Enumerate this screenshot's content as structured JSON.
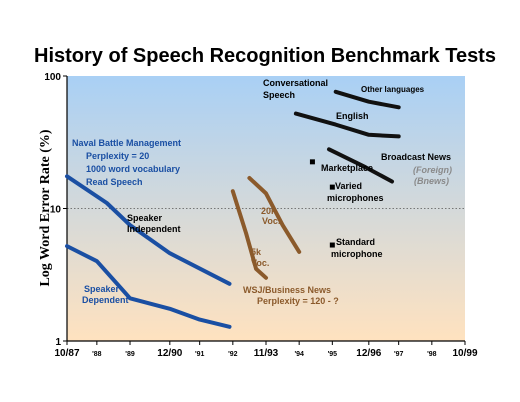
{
  "chart_data": {
    "type": "line",
    "title": "History of Speech Recognition Benchmark Tests",
    "ylabel": "Log Word Error Rate (%)",
    "xlabel": "",
    "yscale": "log",
    "ylim": [
      1,
      100
    ],
    "xlim": [
      1987.8,
      1999.8
    ],
    "y_ticks": [
      "100",
      "10",
      "1"
    ],
    "x_ticks": [
      {
        "x": 1987.8,
        "label": "10/87",
        "small": false
      },
      {
        "x": 1988.7,
        "label": "'88",
        "small": true
      },
      {
        "x": 1989.7,
        "label": "'89",
        "small": true
      },
      {
        "x": 1990.9,
        "label": "12/90",
        "small": false
      },
      {
        "x": 1991.8,
        "label": "'91",
        "small": true
      },
      {
        "x": 1992.8,
        "label": "'92",
        "small": true
      },
      {
        "x": 1993.8,
        "label": "11/93",
        "small": false
      },
      {
        "x": 1994.8,
        "label": "'94",
        "small": true
      },
      {
        "x": 1995.8,
        "label": "'95",
        "small": true
      },
      {
        "x": 1996.9,
        "label": "12/96",
        "small": false
      },
      {
        "x": 1997.8,
        "label": "'97",
        "small": true
      },
      {
        "x": 1998.8,
        "label": "'98",
        "small": true
      },
      {
        "x": 1999.8,
        "label": "10/99",
        "small": false
      }
    ],
    "grid": "dotted line at 10",
    "series": [
      {
        "name": "Speaker Independent",
        "color": "#1a4fa3",
        "points": [
          [
            1987.8,
            17.5
          ],
          [
            1989.0,
            11
          ],
          [
            1989.7,
            7.5
          ],
          [
            1990.9,
            4.6
          ],
          [
            1992.7,
            2.7
          ]
        ]
      },
      {
        "name": "Speaker Dependent",
        "color": "#1a4fa3",
        "points": [
          [
            1987.8,
            5.2
          ],
          [
            1988.7,
            4.0
          ],
          [
            1989.7,
            2.1
          ],
          [
            1990.9,
            1.75
          ],
          [
            1991.8,
            1.45
          ],
          [
            1992.7,
            1.28
          ]
        ]
      },
      {
        "name": "20k Voc.",
        "color": "#8b5a2b",
        "points": [
          [
            1993.3,
            17
          ],
          [
            1993.8,
            13
          ],
          [
            1994.3,
            7.5
          ],
          [
            1994.8,
            4.7
          ]
        ]
      },
      {
        "name": "5k Voc.",
        "color": "#8b5a2b",
        "points": [
          [
            1992.8,
            13.5
          ],
          [
            1993.2,
            6.5
          ],
          [
            1993.5,
            3.5
          ],
          [
            1993.8,
            3.0
          ]
        ]
      },
      {
        "name": "Broadcast News",
        "color": "#111111",
        "points": [
          [
            1995.7,
            28
          ],
          [
            1996.8,
            20.5
          ],
          [
            1997.6,
            16
          ]
        ]
      },
      {
        "name": "English",
        "color": "#111111",
        "points": [
          [
            1994.7,
            52
          ],
          [
            1995.9,
            43
          ],
          [
            1996.9,
            36
          ],
          [
            1997.8,
            35
          ]
        ]
      },
      {
        "name": "Other languages",
        "color": "#111111",
        "points": [
          [
            1995.9,
            76
          ],
          [
            1996.9,
            64
          ],
          [
            1997.8,
            58
          ]
        ]
      }
    ],
    "markers": [
      {
        "label": "Marketplace",
        "x": 1995.2,
        "y": 22.5
      },
      {
        "label": "Varied microphones",
        "x": 1995.8,
        "y": 14.5
      },
      {
        "label": "Standard microphone",
        "x": 1995.8,
        "y": 5.3
      }
    ],
    "annotations": {
      "naval": [
        "Naval Battle Management",
        "Perplexity = 20",
        "1000 word vocabulary",
        "Read Speech"
      ],
      "speaker_independent": [
        "Speaker",
        "Independent"
      ],
      "speaker_dependent": [
        "Speaker",
        "Dependent"
      ],
      "voc_20k": [
        "20k",
        "Voc."
      ],
      "voc_5k": [
        "5k",
        "Voc."
      ],
      "wsj": [
        "WSJ/Business News",
        "Perplexity = 120 - ?"
      ],
      "conversational": [
        "Conversational",
        "Speech"
      ],
      "other_languages": "Other languages",
      "english": "English",
      "broadcast_news": "Broadcast News",
      "foreign": [
        "(Foreign)",
        "(Bnews)"
      ],
      "marketplace": "Marketplace",
      "varied": [
        "Varied",
        "microphones"
      ],
      "standard": [
        "Standard",
        "microphone"
      ]
    }
  },
  "colors": {
    "bg_top": "#a9d0f5",
    "bg_bottom": "#ffe2bf",
    "blue": "#1a4fa3",
    "brown": "#8b5a2b",
    "black": "#111111",
    "gray": "#8a8a8a"
  }
}
